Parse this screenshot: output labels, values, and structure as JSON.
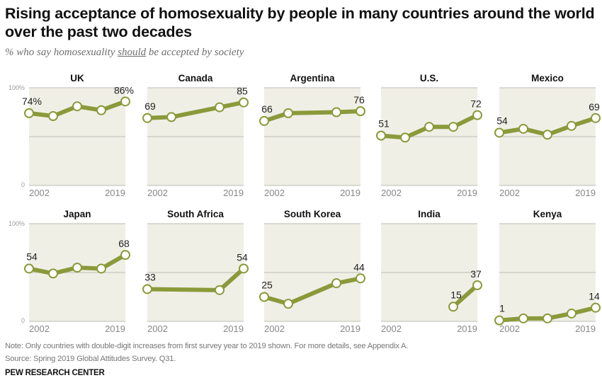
{
  "header": {
    "title": "Rising acceptance of homosexuality by people in many countries around the world over the past two decades",
    "subtitle_prefix": "% who say homosexuality ",
    "subtitle_emphasis": "should",
    "subtitle_suffix": " be accepted by society"
  },
  "footer": {
    "note": "Note: Only countries with double-digit increases from first survey year to 2019 shown. For more details, see Appendix A.",
    "source": "Source: Spring 2019 Global Attitudes Survey. Q31.",
    "brand": "PEW RESEARCH CENTER"
  },
  "colors": {
    "line": "#8a9a3a",
    "panel_bg": "#f0efe6",
    "gridline": "#c8c8c0",
    "marker_fill": "#ffffff"
  },
  "chart_data": {
    "type": "line",
    "title": "Rising acceptance of homosexuality by people in many countries around the world over the past two decades",
    "ylabel": "% who say homosexuality should be accepted by society",
    "ylim": [
      0,
      100
    ],
    "y_ticks": [
      "0",
      "100%"
    ],
    "x_tick_labels": [
      "2002",
      "2019"
    ],
    "grid": true,
    "panels": [
      {
        "name": "UK",
        "points": [
          74,
          71,
          81,
          77,
          86
        ],
        "slots": [
          0,
          1,
          2,
          3,
          4
        ],
        "first_label": "74%",
        "last_label": "86%"
      },
      {
        "name": "Canada",
        "points": [
          69,
          70,
          80,
          85
        ],
        "slots": [
          0,
          1,
          3,
          4
        ],
        "first_label": "69",
        "last_label": "85"
      },
      {
        "name": "Argentina",
        "points": [
          66,
          74,
          75,
          76
        ],
        "slots": [
          0,
          1,
          3,
          4
        ],
        "first_label": "66",
        "last_label": "76"
      },
      {
        "name": "U.S.",
        "points": [
          51,
          49,
          60,
          60,
          72
        ],
        "slots": [
          0,
          1,
          2,
          3,
          4
        ],
        "first_label": "51",
        "last_label": "72"
      },
      {
        "name": "Mexico",
        "points": [
          54,
          58,
          52,
          61,
          69
        ],
        "slots": [
          0,
          1,
          2,
          3,
          4
        ],
        "first_label": "54",
        "last_label": "69"
      },
      {
        "name": "Japan",
        "points": [
          54,
          49,
          55,
          54,
          68
        ],
        "slots": [
          0,
          1,
          2,
          3,
          4
        ],
        "first_label": "54",
        "last_label": "68"
      },
      {
        "name": "South Africa",
        "points": [
          33,
          32,
          54
        ],
        "slots": [
          0,
          3,
          4
        ],
        "first_label": "33",
        "last_label": "54"
      },
      {
        "name": "South Korea",
        "points": [
          25,
          18,
          39,
          44
        ],
        "slots": [
          0,
          1,
          3,
          4
        ],
        "first_label": "25",
        "last_label": "44"
      },
      {
        "name": "India",
        "points": [
          15,
          37
        ],
        "slots": [
          3,
          4
        ],
        "first_label": "15",
        "last_label": "37"
      },
      {
        "name": "Kenya",
        "points": [
          1,
          3,
          3,
          8,
          14
        ],
        "slots": [
          0,
          1,
          2,
          3,
          4
        ],
        "first_label": "1",
        "last_label": "14"
      }
    ]
  }
}
